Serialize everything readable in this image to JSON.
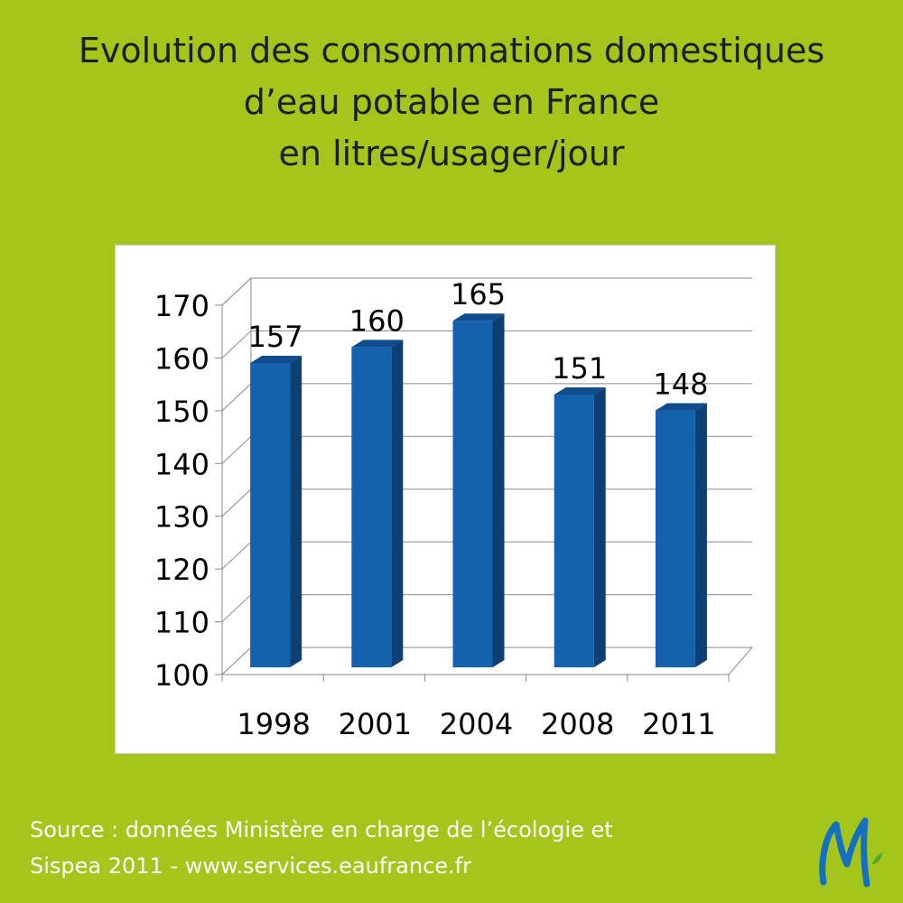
{
  "title_lines": [
    "Evolution des consommations domestiques",
    "d’eau potable en France",
    "en litres/usager/jour"
  ],
  "source_lines": [
    "Source : données Ministère en charge de l’écologie et",
    "Sispea 2011 - www.services.eaufrance.fr"
  ],
  "colors": {
    "background": "#a4c51b",
    "bar_front": "#1462ad",
    "bar_side": "#0d3f75",
    "bar_top": "#0f4c8e",
    "logo_blue": "#1470c0",
    "logo_green": "#4caa2e"
  },
  "chart_data": {
    "type": "bar",
    "categories": [
      "1998",
      "2001",
      "2004",
      "2008",
      "2011"
    ],
    "values": [
      157,
      160,
      165,
      151,
      148
    ],
    "data_labels": [
      "157",
      "160",
      "165",
      "151",
      "148"
    ],
    "y_ticks": [
      "100",
      "110",
      "120",
      "130",
      "140",
      "150",
      "160",
      "170"
    ],
    "ylim": [
      100,
      170
    ],
    "grid": true,
    "style": "3d-column"
  }
}
